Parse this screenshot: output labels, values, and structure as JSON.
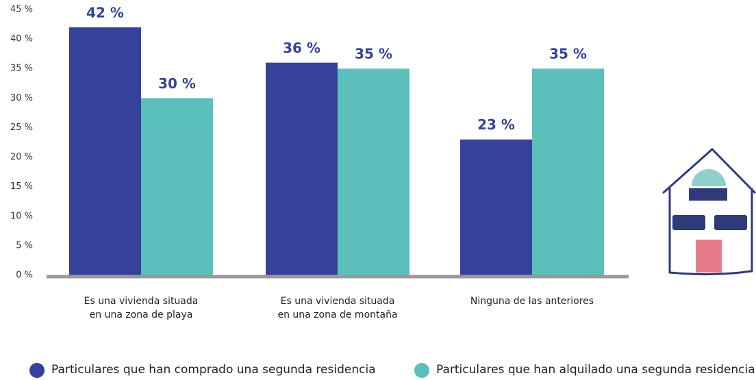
{
  "chart_data": {
    "type": "bar",
    "categories": [
      "Es una vivienda situada\nen una zona de playa",
      "Es una vivienda situada\nen una zona de montaña",
      "Ninguna de las anteriores"
    ],
    "series": [
      {
        "name": "Particulares que han comprado una segunda residencia",
        "color": "#35429a",
        "values": [
          42,
          36,
          23
        ],
        "value_labels": [
          "42 %",
          "36 %",
          "23 %"
        ]
      },
      {
        "name": "Particulares que han alquilado una segunda residencia",
        "color": "#5bbfbb",
        "values": [
          30,
          35,
          35
        ],
        "value_labels": [
          "30 %",
          "35 %",
          "35 %"
        ]
      }
    ],
    "ylim": [
      0,
      45
    ],
    "yticks": [
      {
        "value": 0,
        "label": "0 %"
      },
      {
        "value": 5,
        "label": "5 %"
      },
      {
        "value": 10,
        "label": "10 %"
      },
      {
        "value": 15,
        "label": "15 %"
      },
      {
        "value": 20,
        "label": "20 %"
      },
      {
        "value": 25,
        "label": "25 %"
      },
      {
        "value": 30,
        "label": "30 %"
      },
      {
        "value": 35,
        "label": "35 %"
      },
      {
        "value": 40,
        "label": "40 %"
      },
      {
        "value": 45,
        "label": "45 %"
      }
    ],
    "grid": false
  }
}
